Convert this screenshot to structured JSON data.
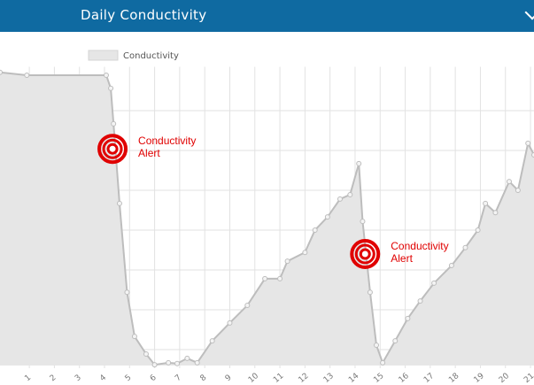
{
  "chart_data": {
    "type": "area",
    "title": "Daily Conductivity",
    "series": [
      {
        "name": "Conductivity",
        "color": "#bdbdbd",
        "fill": "#e6e6e6",
        "x": [
          -0.17,
          0.9,
          4.07,
          4.25,
          4.36,
          4.6,
          4.9,
          5.2,
          5.66,
          6.0,
          6.55,
          6.9,
          7.3,
          7.7,
          8.3,
          9.0,
          9.7,
          10.4,
          11.0,
          11.3,
          12.0,
          12.4,
          12.9,
          13.4,
          13.8,
          14.15,
          14.3,
          14.6,
          14.85,
          15.1,
          15.6,
          16.1,
          16.6,
          17.15,
          17.85,
          18.4,
          18.9,
          19.2,
          19.6,
          20.15,
          20.5,
          20.9,
          21.14
        ],
        "values": [
          79.6,
          78.9,
          78.9,
          75.6,
          66.7,
          46.7,
          24.4,
          13.3,
          8.9,
          6.2,
          6.7,
          6.5,
          7.8,
          6.7,
          12.2,
          16.7,
          21.1,
          27.8,
          27.8,
          32.2,
          34.4,
          40,
          43.3,
          47.8,
          48.9,
          56.7,
          42.2,
          24.4,
          11.1,
          6.7,
          12.2,
          17.8,
          22.2,
          26.7,
          31.1,
          35.6,
          40,
          46.7,
          44.4,
          52.2,
          50,
          61.8,
          58.9
        ]
      }
    ],
    "xlim": [
      -0.17,
      21.14
    ],
    "xticks": [
      1,
      2,
      3,
      4,
      5,
      6,
      7,
      8,
      9,
      10,
      11,
      12,
      13,
      14,
      15,
      16,
      17,
      18,
      19,
      20,
      21
    ],
    "ylim": [
      6,
      81
    ],
    "yticks": [
      10,
      20,
      30,
      40,
      50,
      60,
      70
    ],
    "grid": true,
    "annotations": [
      {
        "text": "Conductivity Alert",
        "x": 4.32,
        "y": 60.4,
        "color": "#e00000"
      },
      {
        "text": "Conductivity Alert",
        "x": 14.4,
        "y": 34,
        "color": "#e00000"
      }
    ]
  }
}
